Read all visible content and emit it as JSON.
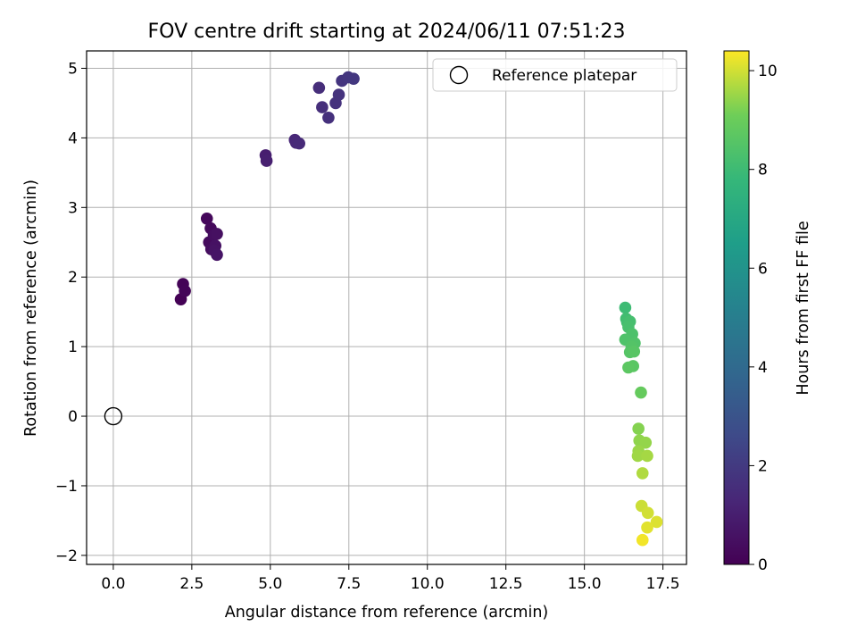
{
  "chart_data": {
    "type": "scatter",
    "title": "FOV centre drift starting at 2024/06/11 07:51:23",
    "xlabel": "Angular distance from reference (arcmin)",
    "ylabel": "Rotation from reference (arcmin)",
    "xlim": [
      -0.85,
      18.25
    ],
    "ylim": [
      -2.13,
      5.25
    ],
    "xticks": [
      0.0,
      2.5,
      5.0,
      7.5,
      10.0,
      12.5,
      15.0,
      17.5
    ],
    "xtick_labels": [
      "0.0",
      "2.5",
      "5.0",
      "7.5",
      "10.0",
      "12.5",
      "15.0",
      "17.5"
    ],
    "yticks": [
      -2,
      -1,
      0,
      1,
      2,
      3,
      4,
      5
    ],
    "ytick_labels": [
      "−2",
      "−1",
      "0",
      "1",
      "2",
      "3",
      "4",
      "5"
    ],
    "grid": true,
    "legend": {
      "position": "top-right",
      "entries": [
        "Reference platepar"
      ]
    },
    "colorbar": {
      "label": "Hours from first FF file",
      "colormap": "viridis",
      "range": [
        0,
        10.4
      ],
      "ticks": [
        0,
        2,
        4,
        6,
        8,
        10
      ],
      "tick_labels": [
        "0",
        "2",
        "4",
        "6",
        "8",
        "10"
      ]
    },
    "reference_point": {
      "x": 0.0,
      "y": 0.0
    },
    "points": [
      {
        "x": 2.15,
        "y": 1.68,
        "t": 0.05
      },
      {
        "x": 2.22,
        "y": 1.9,
        "t": 0.1
      },
      {
        "x": 2.28,
        "y": 1.8,
        "t": 0.15
      },
      {
        "x": 2.98,
        "y": 2.84,
        "t": 0.25
      },
      {
        "x": 3.1,
        "y": 2.7,
        "t": 0.3
      },
      {
        "x": 3.05,
        "y": 2.5,
        "t": 0.35
      },
      {
        "x": 3.12,
        "y": 2.4,
        "t": 0.4
      },
      {
        "x": 3.2,
        "y": 2.6,
        "t": 0.45
      },
      {
        "x": 3.3,
        "y": 2.62,
        "t": 0.5
      },
      {
        "x": 3.25,
        "y": 2.45,
        "t": 0.55
      },
      {
        "x": 3.22,
        "y": 2.38,
        "t": 0.6
      },
      {
        "x": 3.3,
        "y": 2.32,
        "t": 0.65
      },
      {
        "x": 4.85,
        "y": 3.75,
        "t": 1.0
      },
      {
        "x": 4.88,
        "y": 3.67,
        "t": 1.05
      },
      {
        "x": 5.78,
        "y": 3.97,
        "t": 1.3
      },
      {
        "x": 5.82,
        "y": 3.93,
        "t": 1.35
      },
      {
        "x": 5.92,
        "y": 3.92,
        "t": 1.4
      },
      {
        "x": 6.55,
        "y": 4.72,
        "t": 1.55
      },
      {
        "x": 6.65,
        "y": 4.44,
        "t": 1.6
      },
      {
        "x": 6.85,
        "y": 4.29,
        "t": 1.65
      },
      {
        "x": 7.08,
        "y": 4.5,
        "t": 1.7
      },
      {
        "x": 7.18,
        "y": 4.62,
        "t": 1.75
      },
      {
        "x": 7.28,
        "y": 4.82,
        "t": 1.8
      },
      {
        "x": 7.48,
        "y": 4.87,
        "t": 1.85
      },
      {
        "x": 7.65,
        "y": 4.85,
        "t": 1.9
      },
      {
        "x": 16.3,
        "y": 1.56,
        "t": 8.0
      },
      {
        "x": 16.33,
        "y": 1.4,
        "t": 8.1
      },
      {
        "x": 16.36,
        "y": 1.35,
        "t": 8.15
      },
      {
        "x": 16.45,
        "y": 1.36,
        "t": 8.2
      },
      {
        "x": 16.4,
        "y": 1.28,
        "t": 8.25
      },
      {
        "x": 16.52,
        "y": 1.18,
        "t": 8.35
      },
      {
        "x": 16.3,
        "y": 1.1,
        "t": 8.4
      },
      {
        "x": 16.6,
        "y": 1.05,
        "t": 8.45
      },
      {
        "x": 16.5,
        "y": 1.0,
        "t": 8.5
      },
      {
        "x": 16.45,
        "y": 0.92,
        "t": 8.55
      },
      {
        "x": 16.58,
        "y": 0.93,
        "t": 8.6
      },
      {
        "x": 16.55,
        "y": 0.72,
        "t": 8.65
      },
      {
        "x": 16.4,
        "y": 0.7,
        "t": 8.7
      },
      {
        "x": 16.8,
        "y": 0.34,
        "t": 8.9
      },
      {
        "x": 16.72,
        "y": -0.18,
        "t": 9.3
      },
      {
        "x": 16.75,
        "y": -0.35,
        "t": 9.4
      },
      {
        "x": 16.95,
        "y": -0.38,
        "t": 9.45
      },
      {
        "x": 16.72,
        "y": -0.5,
        "t": 9.5
      },
      {
        "x": 16.7,
        "y": -0.57,
        "t": 9.55
      },
      {
        "x": 17.0,
        "y": -0.57,
        "t": 9.6
      },
      {
        "x": 16.85,
        "y": -0.82,
        "t": 9.7
      },
      {
        "x": 16.82,
        "y": -1.29,
        "t": 9.95
      },
      {
        "x": 17.02,
        "y": -1.39,
        "t": 10.0
      },
      {
        "x": 17.3,
        "y": -1.52,
        "t": 10.1
      },
      {
        "x": 17.0,
        "y": -1.6,
        "t": 10.15
      },
      {
        "x": 16.85,
        "y": -1.78,
        "t": 10.3
      }
    ]
  }
}
